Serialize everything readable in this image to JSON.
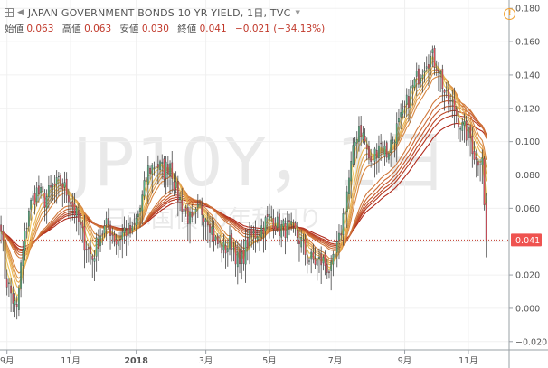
{
  "header": {
    "symbol_title": "JAPAN GOVERNMENT BONDS 10 YR YIELD, 1日, TVC",
    "open_label": "始値",
    "open_value": "0.063",
    "high_label": "高値",
    "high_value": "0.063",
    "low_label": "安値",
    "low_value": "0.030",
    "close_label": "終値",
    "close_value": "0.041",
    "change": "−0.021 (−34.13%)"
  },
  "watermark": {
    "symbol": "JP10Y，1日",
    "name": "日本国債10年利回り"
  },
  "icons": {
    "grid": "grid-icon",
    "collapse": "collapse-icon",
    "caret": "caret-down-icon",
    "alert": "alert-icon"
  },
  "colors": {
    "up": "#53b987",
    "down": "#eb4d5c",
    "wick": "#444444",
    "current_line": "#c0392b",
    "price_tag_bg": "#ef5350",
    "ribbon_fast": "#f7d560",
    "ribbon_slow": "#b0281a"
  },
  "chart_data": {
    "type": "candlestick",
    "title": "JAPAN GOVERNMENT BONDS 10 YR YIELD, 1日, TVC",
    "y_axis_side": "right",
    "ylim": [
      -0.025,
      0.185
    ],
    "y_ticks": [
      0.18,
      0.16,
      0.14,
      0.12,
      0.1,
      0.08,
      0.06,
      0.04,
      0.02,
      0,
      -0.02
    ],
    "y_tick_labels": [
      "0.180",
      "0.160",
      "0.140",
      "0.120",
      "0.100",
      "0.080",
      "0.060",
      "0.040",
      "0.020",
      "0.000",
      "−0.020"
    ],
    "x_ticks": [
      {
        "index": 3,
        "label": "9月"
      },
      {
        "index": 35,
        "label": "11月"
      },
      {
        "index": 68,
        "label": "2018"
      },
      {
        "index": 103,
        "label": "3月"
      },
      {
        "index": 135,
        "label": "5月"
      },
      {
        "index": 168,
        "label": "7月"
      },
      {
        "index": 203,
        "label": "9月"
      },
      {
        "index": 235,
        "label": "11月"
      }
    ],
    "total_bars": 256,
    "current_value": 0.041,
    "current_value_label": "0.041",
    "guppy_ema_periods": [
      3,
      5,
      8,
      10,
      12,
      15,
      30,
      35,
      40,
      45,
      50,
      60
    ],
    "waypoints": [
      [
        0,
        0.052
      ],
      [
        2,
        0.02
      ],
      [
        6,
        0.005
      ],
      [
        8,
        -0.002
      ],
      [
        10,
        0.025
      ],
      [
        14,
        0.06
      ],
      [
        18,
        0.07
      ],
      [
        22,
        0.065
      ],
      [
        26,
        0.072
      ],
      [
        30,
        0.075
      ],
      [
        34,
        0.068
      ],
      [
        38,
        0.055
      ],
      [
        42,
        0.04
      ],
      [
        46,
        0.03
      ],
      [
        50,
        0.045
      ],
      [
        54,
        0.05
      ],
      [
        58,
        0.04
      ],
      [
        62,
        0.047
      ],
      [
        66,
        0.045
      ],
      [
        70,
        0.06
      ],
      [
        74,
        0.083
      ],
      [
        78,
        0.087
      ],
      [
        82,
        0.082
      ],
      [
        85,
        0.088
      ],
      [
        88,
        0.07
      ],
      [
        92,
        0.06
      ],
      [
        96,
        0.05
      ],
      [
        100,
        0.06
      ],
      [
        104,
        0.055
      ],
      [
        108,
        0.04
      ],
      [
        112,
        0.035
      ],
      [
        116,
        0.04
      ],
      [
        120,
        0.025
      ],
      [
        124,
        0.04
      ],
      [
        128,
        0.045
      ],
      [
        132,
        0.05
      ],
      [
        136,
        0.055
      ],
      [
        140,
        0.048
      ],
      [
        144,
        0.048
      ],
      [
        148,
        0.045
      ],
      [
        151,
        0.04
      ],
      [
        154,
        0.03
      ],
      [
        158,
        0.028
      ],
      [
        162,
        0.028
      ],
      [
        166,
        0.022
      ],
      [
        170,
        0.04
      ],
      [
        174,
        0.07
      ],
      [
        178,
        0.1
      ],
      [
        180,
        0.11
      ],
      [
        183,
        0.1
      ],
      [
        186,
        0.085
      ],
      [
        190,
        0.1
      ],
      [
        194,
        0.093
      ],
      [
        198,
        0.105
      ],
      [
        202,
        0.115
      ],
      [
        206,
        0.13
      ],
      [
        210,
        0.14
      ],
      [
        214,
        0.15
      ],
      [
        217,
        0.15
      ],
      [
        220,
        0.145
      ],
      [
        224,
        0.125
      ],
      [
        228,
        0.12
      ],
      [
        232,
        0.108
      ],
      [
        236,
        0.102
      ],
      [
        239,
        0.088
      ],
      [
        242,
        0.093
      ],
      [
        243,
        0.062
      ],
      [
        244,
        0.041
      ]
    ]
  }
}
